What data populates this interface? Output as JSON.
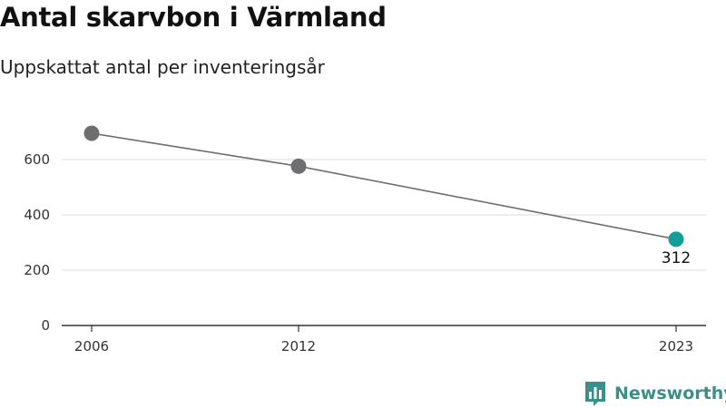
{
  "title": "Antal skarvbon i Värmland",
  "subtitle": "Uppskattat antal per inventeringsår",
  "brand": {
    "name": "Newsworthy",
    "color": "#3b8f8a",
    "icon": "newsworthy-logo-icon"
  },
  "colors": {
    "line": "#6e6e6e",
    "point": "#6e6e70",
    "highlight": "#159e96",
    "grid": "#dddddd",
    "axis": "#333333"
  },
  "chart_data": {
    "type": "line",
    "title": "Antal skarvbon i Värmland",
    "subtitle": "Uppskattat antal per inventeringsår",
    "xlabel": "",
    "ylabel": "",
    "x": [
      2006,
      2012,
      2023
    ],
    "series": [
      {
        "values": [
          695,
          576,
          312
        ]
      }
    ],
    "x_ticks": [
      "2006",
      "2012",
      "2023"
    ],
    "y_ticks": [
      "0",
      "200",
      "400",
      "600"
    ],
    "ylim": [
      0,
      700
    ],
    "grid": true,
    "highlight": {
      "x": 2023,
      "value": 312,
      "label": "312"
    }
  }
}
